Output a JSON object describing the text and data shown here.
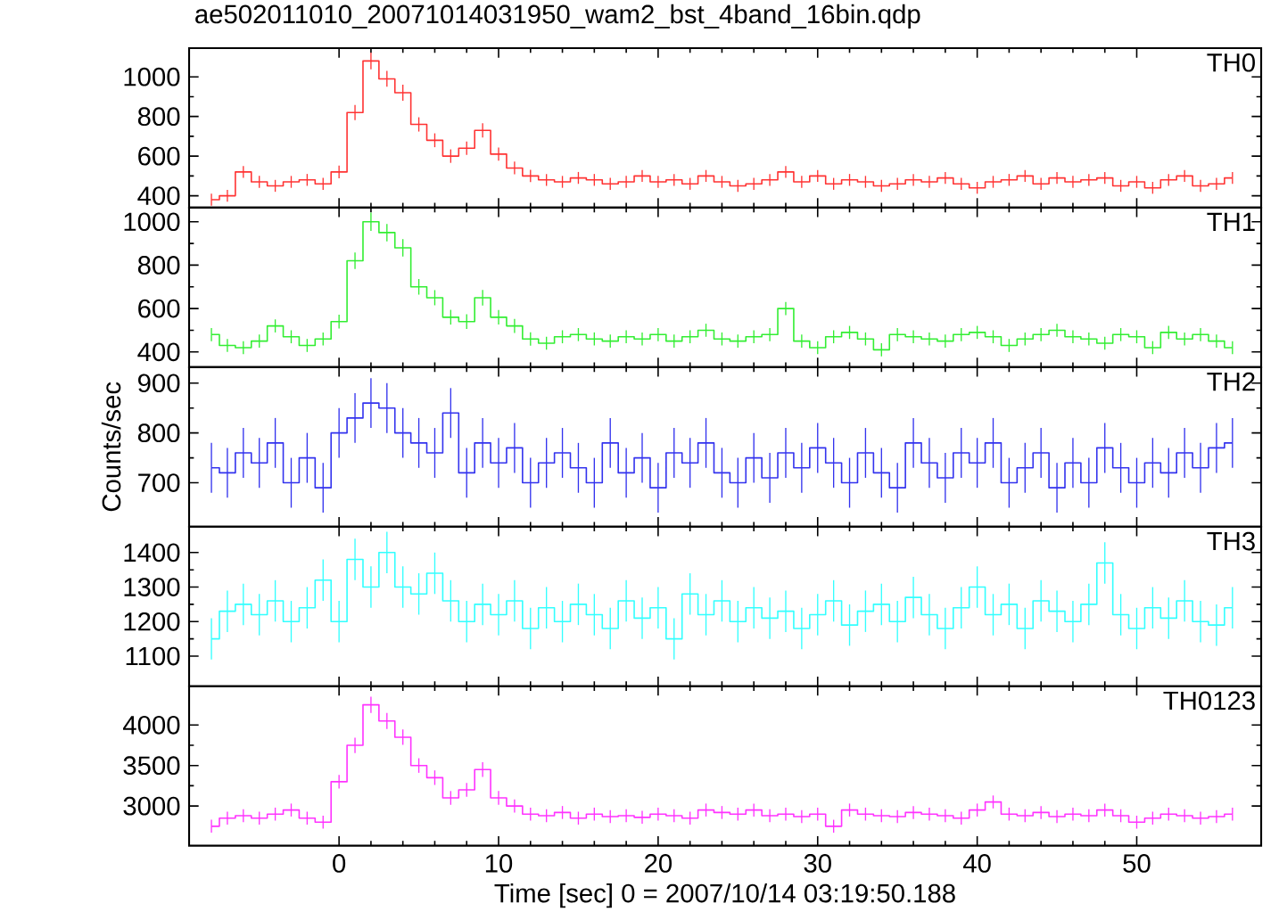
{
  "chart_data": [
    {
      "type": "step",
      "title": "ae502011010_20071014031950_wam2_bst_4band_16bin.qdp",
      "annotations": [
        "TH0"
      ],
      "xlim": [
        -9.4,
        57.8
      ],
      "xticks": [
        0,
        10,
        20,
        30,
        40,
        50
      ],
      "ylim": [
        340,
        1145
      ],
      "yticks": [
        400,
        600,
        800,
        1000
      ],
      "tick_labels": "y",
      "marker": "none",
      "x": [
        -8,
        -7,
        -6,
        -5,
        -4,
        -3,
        -2,
        -1,
        0,
        1,
        2,
        3,
        4,
        5,
        6,
        7,
        8,
        9,
        10,
        11,
        12,
        13,
        14,
        15,
        16,
        17,
        18,
        19,
        20,
        21,
        22,
        23,
        24,
        25,
        26,
        27,
        28,
        29,
        30,
        31,
        32,
        33,
        34,
        35,
        36,
        37,
        38,
        39,
        40,
        41,
        42,
        43,
        44,
        45,
        46,
        47,
        48,
        49,
        50,
        51,
        52,
        53,
        54,
        55,
        56
      ],
      "series": [
        {
          "color": "#ff3333",
          "values": [
            380,
            400,
            520,
            470,
            450,
            470,
            480,
            460,
            520,
            820,
            1080,
            990,
            920,
            760,
            680,
            600,
            640,
            730,
            610,
            540,
            500,
            480,
            470,
            490,
            480,
            460,
            470,
            500,
            470,
            480,
            460,
            500,
            470,
            450,
            460,
            480,
            520,
            470,
            500,
            460,
            480,
            470,
            450,
            460,
            480,
            470,
            490,
            460,
            440,
            470,
            480,
            500,
            460,
            490,
            470,
            480,
            490,
            450,
            470,
            440,
            480,
            500,
            450,
            460,
            490
          ],
          "errors": [
            30,
            30,
            30,
            30,
            30,
            30,
            30,
            30,
            32,
            38,
            42,
            40,
            40,
            36,
            35,
            34,
            34,
            36,
            33,
            32,
            31,
            30,
            30,
            30,
            30,
            30,
            30,
            30,
            30,
            30,
            30,
            30,
            30,
            30,
            30,
            30,
            30,
            30,
            30,
            30,
            30,
            30,
            30,
            30,
            30,
            30,
            30,
            30,
            30,
            30,
            30,
            30,
            30,
            30,
            30,
            30,
            30,
            30,
            30,
            30,
            30,
            30,
            30,
            30,
            30
          ]
        }
      ]
    },
    {
      "type": "step",
      "annotations": [
        "TH1"
      ],
      "xlim": [
        -9.4,
        57.8
      ],
      "xticks": [
        0,
        10,
        20,
        30,
        40,
        50
      ],
      "ylim": [
        330,
        1065
      ],
      "yticks": [
        400,
        600,
        800,
        1000
      ],
      "tick_labels": "y",
      "marker": "none",
      "x": [
        -8,
        -7,
        -6,
        -5,
        -4,
        -3,
        -2,
        -1,
        0,
        1,
        2,
        3,
        4,
        5,
        6,
        7,
        8,
        9,
        10,
        11,
        12,
        13,
        14,
        15,
        16,
        17,
        18,
        19,
        20,
        21,
        22,
        23,
        24,
        25,
        26,
        27,
        28,
        29,
        30,
        31,
        32,
        33,
        34,
        35,
        36,
        37,
        38,
        39,
        40,
        41,
        42,
        43,
        44,
        45,
        46,
        47,
        48,
        49,
        50,
        51,
        52,
        53,
        54,
        55,
        56
      ],
      "series": [
        {
          "color": "#33ee33",
          "values": [
            480,
            430,
            420,
            450,
            520,
            470,
            430,
            460,
            540,
            820,
            1000,
            950,
            880,
            700,
            650,
            560,
            540,
            650,
            560,
            520,
            460,
            440,
            470,
            480,
            460,
            450,
            470,
            460,
            480,
            450,
            470,
            500,
            460,
            450,
            470,
            480,
            600,
            450,
            420,
            470,
            490,
            460,
            410,
            480,
            470,
            460,
            450,
            480,
            490,
            470,
            430,
            460,
            480,
            500,
            470,
            460,
            440,
            480,
            470,
            420,
            490,
            460,
            480,
            450,
            420
          ],
          "errors": [
            30,
            30,
            30,
            30,
            30,
            30,
            30,
            30,
            32,
            38,
            42,
            40,
            40,
            36,
            35,
            34,
            34,
            36,
            33,
            32,
            31,
            30,
            30,
            30,
            30,
            30,
            30,
            30,
            30,
            30,
            30,
            30,
            30,
            30,
            30,
            30,
            30,
            30,
            30,
            30,
            30,
            30,
            30,
            30,
            30,
            30,
            30,
            30,
            30,
            30,
            30,
            30,
            30,
            30,
            30,
            30,
            30,
            30,
            30,
            30,
            30,
            30,
            30,
            30,
            30
          ]
        }
      ]
    },
    {
      "type": "step",
      "ylabel": "Counts/sec",
      "annotations": [
        "TH2"
      ],
      "xlim": [
        -9.4,
        57.8
      ],
      "xticks": [
        0,
        10,
        20,
        30,
        40,
        50
      ],
      "ylim": [
        612,
        932
      ],
      "yticks": [
        700,
        800,
        900
      ],
      "tick_labels": "y",
      "marker": "none",
      "x": [
        -8,
        -7,
        -6,
        -5,
        -4,
        -3,
        -2,
        -1,
        0,
        1,
        2,
        3,
        4,
        5,
        6,
        7,
        8,
        9,
        10,
        11,
        12,
        13,
        14,
        15,
        16,
        17,
        18,
        19,
        20,
        21,
        22,
        23,
        24,
        25,
        26,
        27,
        28,
        29,
        30,
        31,
        32,
        33,
        34,
        35,
        36,
        37,
        38,
        39,
        40,
        41,
        42,
        43,
        44,
        45,
        46,
        47,
        48,
        49,
        50,
        51,
        52,
        53,
        54,
        55,
        56
      ],
      "series": [
        {
          "color": "#3333ee",
          "values": [
            730,
            720,
            760,
            740,
            780,
            700,
            750,
            690,
            800,
            830,
            860,
            850,
            800,
            780,
            760,
            840,
            720,
            780,
            740,
            770,
            700,
            740,
            760,
            730,
            700,
            780,
            720,
            750,
            690,
            760,
            740,
            780,
            720,
            700,
            750,
            710,
            760,
            730,
            770,
            740,
            700,
            760,
            720,
            690,
            780,
            740,
            710,
            760,
            740,
            780,
            700,
            730,
            760,
            690,
            740,
            700,
            770,
            730,
            700,
            740,
            720,
            760,
            730,
            770,
            780
          ],
          "errors": [
            50,
            50,
            50,
            50,
            50,
            50,
            50,
            50,
            50,
            50,
            50,
            50,
            50,
            50,
            50,
            50,
            50,
            50,
            50,
            50,
            50,
            50,
            50,
            50,
            50,
            50,
            50,
            50,
            50,
            50,
            50,
            50,
            50,
            50,
            50,
            50,
            50,
            50,
            50,
            50,
            50,
            50,
            50,
            50,
            50,
            50,
            50,
            50,
            50,
            50,
            50,
            50,
            50,
            50,
            50,
            50,
            50,
            50,
            50,
            50,
            50,
            50,
            50,
            50,
            50
          ]
        }
      ]
    },
    {
      "type": "step",
      "annotations": [
        "TH3"
      ],
      "xlim": [
        -9.4,
        57.8
      ],
      "xticks": [
        0,
        10,
        20,
        30,
        40,
        50
      ],
      "ylim": [
        1013,
        1475
      ],
      "yticks": [
        1100,
        1200,
        1300,
        1400
      ],
      "tick_labels": "y",
      "marker": "none",
      "x": [
        -8,
        -7,
        -6,
        -5,
        -4,
        -3,
        -2,
        -1,
        0,
        1,
        2,
        3,
        4,
        5,
        6,
        7,
        8,
        9,
        10,
        11,
        12,
        13,
        14,
        15,
        16,
        17,
        18,
        19,
        20,
        21,
        22,
        23,
        24,
        25,
        26,
        27,
        28,
        29,
        30,
        31,
        32,
        33,
        34,
        35,
        36,
        37,
        38,
        39,
        40,
        41,
        42,
        43,
        44,
        45,
        46,
        47,
        48,
        49,
        50,
        51,
        52,
        53,
        54,
        55,
        56
      ],
      "series": [
        {
          "color": "#33ffff",
          "values": [
            1150,
            1230,
            1250,
            1220,
            1260,
            1200,
            1240,
            1320,
            1200,
            1380,
            1300,
            1400,
            1300,
            1280,
            1340,
            1260,
            1200,
            1250,
            1220,
            1260,
            1180,
            1240,
            1200,
            1250,
            1220,
            1180,
            1260,
            1210,
            1240,
            1150,
            1280,
            1220,
            1260,
            1200,
            1240,
            1210,
            1230,
            1180,
            1220,
            1260,
            1190,
            1230,
            1250,
            1200,
            1270,
            1220,
            1180,
            1240,
            1300,
            1220,
            1250,
            1180,
            1260,
            1230,
            1200,
            1250,
            1370,
            1220,
            1180,
            1240,
            1210,
            1260,
            1200,
            1190,
            1240
          ],
          "errors": [
            60,
            60,
            60,
            60,
            60,
            60,
            60,
            60,
            60,
            60,
            60,
            60,
            60,
            60,
            60,
            60,
            60,
            60,
            60,
            60,
            60,
            60,
            60,
            60,
            60,
            60,
            60,
            60,
            60,
            60,
            60,
            60,
            60,
            60,
            60,
            60,
            60,
            60,
            60,
            60,
            60,
            60,
            60,
            60,
            60,
            60,
            60,
            60,
            60,
            60,
            60,
            60,
            60,
            60,
            60,
            60,
            60,
            60,
            60,
            60,
            60,
            60,
            60,
            60,
            60
          ]
        }
      ]
    },
    {
      "type": "step",
      "xlabel": "Time [sec] 0 = 2007/10/14 03:19:50.188",
      "annotations": [
        "TH0123"
      ],
      "xlim": [
        -9.4,
        57.8
      ],
      "xticks": [
        0,
        10,
        20,
        30,
        40,
        50
      ],
      "ylim": [
        2510,
        4480
      ],
      "yticks": [
        3000,
        3500,
        4000
      ],
      "marker": "none",
      "x": [
        -8,
        -7,
        -6,
        -5,
        -4,
        -3,
        -2,
        -1,
        0,
        1,
        2,
        3,
        4,
        5,
        6,
        7,
        8,
        9,
        10,
        11,
        12,
        13,
        14,
        15,
        16,
        17,
        18,
        19,
        20,
        21,
        22,
        23,
        24,
        25,
        26,
        27,
        28,
        29,
        30,
        31,
        32,
        33,
        34,
        35,
        36,
        37,
        38,
        39,
        40,
        41,
        42,
        43,
        44,
        45,
        46,
        47,
        48,
        49,
        50,
        51,
        52,
        53,
        54,
        55,
        56
      ],
      "series": [
        {
          "color": "#ff33ff",
          "values": [
            2750,
            2850,
            2880,
            2850,
            2900,
            2950,
            2850,
            2800,
            3300,
            3750,
            4250,
            4050,
            3850,
            3500,
            3350,
            3100,
            3200,
            3450,
            3100,
            3000,
            2900,
            2880,
            2920,
            2850,
            2900,
            2870,
            2880,
            2860,
            2900,
            2880,
            2850,
            2950,
            2920,
            2900,
            2950,
            2880,
            2900,
            2870,
            2900,
            2750,
            2950,
            2900,
            2880,
            2870,
            2920,
            2900,
            2880,
            2850,
            2950,
            3050,
            2900,
            2880,
            2920,
            2870,
            2900,
            2880,
            2950,
            2880,
            2800,
            2850,
            2900,
            2880,
            2850,
            2870,
            2900
          ],
          "errors": [
            80,
            80,
            80,
            80,
            80,
            80,
            80,
            80,
            85,
            95,
            100,
            100,
            95,
            90,
            90,
            85,
            85,
            90,
            85,
            80,
            80,
            80,
            80,
            80,
            80,
            80,
            80,
            80,
            80,
            80,
            80,
            80,
            80,
            80,
            80,
            80,
            80,
            80,
            80,
            80,
            80,
            80,
            80,
            80,
            80,
            80,
            80,
            80,
            80,
            80,
            80,
            80,
            80,
            80,
            80,
            80,
            80,
            80,
            80,
            80,
            80,
            80,
            80,
            80,
            80
          ]
        }
      ]
    }
  ]
}
